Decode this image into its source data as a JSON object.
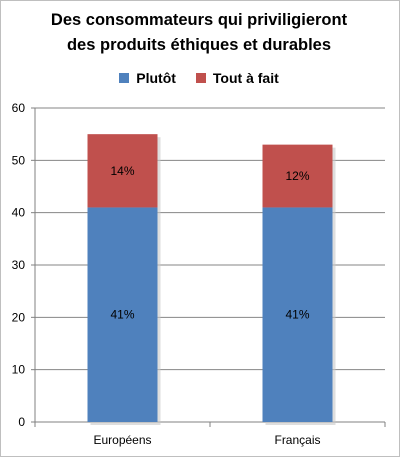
{
  "chart_data": {
    "type": "bar",
    "stacked": true,
    "title_line1": "Des consommateurs qui priviligieront",
    "title_line2": "des produits éthiques et durables",
    "categories": [
      "Européens",
      "Français"
    ],
    "series": [
      {
        "name": "Plutôt",
        "color": "#4f81bd",
        "values": [
          41,
          41
        ],
        "labels": [
          "41%",
          "41%"
        ]
      },
      {
        "name": "Tout à fait",
        "color": "#c0504d",
        "values": [
          14,
          12
        ],
        "labels": [
          "14%",
          "12%"
        ]
      }
    ],
    "ylim": [
      0,
      60
    ],
    "yticks": [
      "0",
      "10",
      "20",
      "30",
      "40",
      "50",
      "60"
    ],
    "grid": true,
    "legend_position": "top"
  }
}
